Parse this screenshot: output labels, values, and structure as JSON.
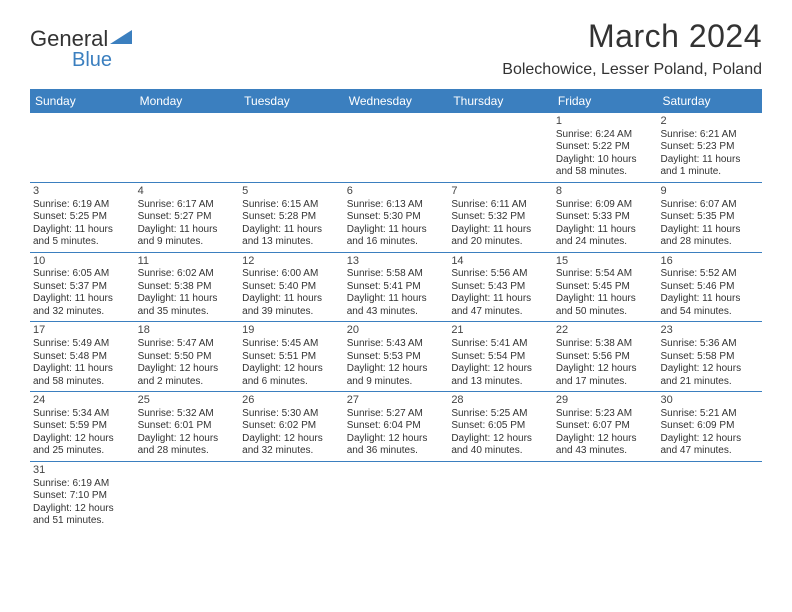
{
  "logo": {
    "text1": "General",
    "text2": "Blue"
  },
  "header": {
    "title": "March 2024",
    "location": "Bolechowice, Lesser Poland, Poland"
  },
  "colors": {
    "header_bg": "#3b7fbf",
    "header_text": "#ffffff",
    "border": "#3b7fbf",
    "text": "#333333",
    "logo_blue": "#3b7fbf"
  },
  "day_names": [
    "Sunday",
    "Monday",
    "Tuesday",
    "Wednesday",
    "Thursday",
    "Friday",
    "Saturday"
  ],
  "weeks": [
    [
      {
        "empty": true
      },
      {
        "empty": true
      },
      {
        "empty": true
      },
      {
        "empty": true
      },
      {
        "empty": true
      },
      {
        "num": "1",
        "sunrise": "Sunrise: 6:24 AM",
        "sunset": "Sunset: 5:22 PM",
        "daylight": "Daylight: 10 hours",
        "daylight2": "and 58 minutes."
      },
      {
        "num": "2",
        "sunrise": "Sunrise: 6:21 AM",
        "sunset": "Sunset: 5:23 PM",
        "daylight": "Daylight: 11 hours",
        "daylight2": "and 1 minute."
      }
    ],
    [
      {
        "num": "3",
        "sunrise": "Sunrise: 6:19 AM",
        "sunset": "Sunset: 5:25 PM",
        "daylight": "Daylight: 11 hours",
        "daylight2": "and 5 minutes."
      },
      {
        "num": "4",
        "sunrise": "Sunrise: 6:17 AM",
        "sunset": "Sunset: 5:27 PM",
        "daylight": "Daylight: 11 hours",
        "daylight2": "and 9 minutes."
      },
      {
        "num": "5",
        "sunrise": "Sunrise: 6:15 AM",
        "sunset": "Sunset: 5:28 PM",
        "daylight": "Daylight: 11 hours",
        "daylight2": "and 13 minutes."
      },
      {
        "num": "6",
        "sunrise": "Sunrise: 6:13 AM",
        "sunset": "Sunset: 5:30 PM",
        "daylight": "Daylight: 11 hours",
        "daylight2": "and 16 minutes."
      },
      {
        "num": "7",
        "sunrise": "Sunrise: 6:11 AM",
        "sunset": "Sunset: 5:32 PM",
        "daylight": "Daylight: 11 hours",
        "daylight2": "and 20 minutes."
      },
      {
        "num": "8",
        "sunrise": "Sunrise: 6:09 AM",
        "sunset": "Sunset: 5:33 PM",
        "daylight": "Daylight: 11 hours",
        "daylight2": "and 24 minutes."
      },
      {
        "num": "9",
        "sunrise": "Sunrise: 6:07 AM",
        "sunset": "Sunset: 5:35 PM",
        "daylight": "Daylight: 11 hours",
        "daylight2": "and 28 minutes."
      }
    ],
    [
      {
        "num": "10",
        "sunrise": "Sunrise: 6:05 AM",
        "sunset": "Sunset: 5:37 PM",
        "daylight": "Daylight: 11 hours",
        "daylight2": "and 32 minutes."
      },
      {
        "num": "11",
        "sunrise": "Sunrise: 6:02 AM",
        "sunset": "Sunset: 5:38 PM",
        "daylight": "Daylight: 11 hours",
        "daylight2": "and 35 minutes."
      },
      {
        "num": "12",
        "sunrise": "Sunrise: 6:00 AM",
        "sunset": "Sunset: 5:40 PM",
        "daylight": "Daylight: 11 hours",
        "daylight2": "and 39 minutes."
      },
      {
        "num": "13",
        "sunrise": "Sunrise: 5:58 AM",
        "sunset": "Sunset: 5:41 PM",
        "daylight": "Daylight: 11 hours",
        "daylight2": "and 43 minutes."
      },
      {
        "num": "14",
        "sunrise": "Sunrise: 5:56 AM",
        "sunset": "Sunset: 5:43 PM",
        "daylight": "Daylight: 11 hours",
        "daylight2": "and 47 minutes."
      },
      {
        "num": "15",
        "sunrise": "Sunrise: 5:54 AM",
        "sunset": "Sunset: 5:45 PM",
        "daylight": "Daylight: 11 hours",
        "daylight2": "and 50 minutes."
      },
      {
        "num": "16",
        "sunrise": "Sunrise: 5:52 AM",
        "sunset": "Sunset: 5:46 PM",
        "daylight": "Daylight: 11 hours",
        "daylight2": "and 54 minutes."
      }
    ],
    [
      {
        "num": "17",
        "sunrise": "Sunrise: 5:49 AM",
        "sunset": "Sunset: 5:48 PM",
        "daylight": "Daylight: 11 hours",
        "daylight2": "and 58 minutes."
      },
      {
        "num": "18",
        "sunrise": "Sunrise: 5:47 AM",
        "sunset": "Sunset: 5:50 PM",
        "daylight": "Daylight: 12 hours",
        "daylight2": "and 2 minutes."
      },
      {
        "num": "19",
        "sunrise": "Sunrise: 5:45 AM",
        "sunset": "Sunset: 5:51 PM",
        "daylight": "Daylight: 12 hours",
        "daylight2": "and 6 minutes."
      },
      {
        "num": "20",
        "sunrise": "Sunrise: 5:43 AM",
        "sunset": "Sunset: 5:53 PM",
        "daylight": "Daylight: 12 hours",
        "daylight2": "and 9 minutes."
      },
      {
        "num": "21",
        "sunrise": "Sunrise: 5:41 AM",
        "sunset": "Sunset: 5:54 PM",
        "daylight": "Daylight: 12 hours",
        "daylight2": "and 13 minutes."
      },
      {
        "num": "22",
        "sunrise": "Sunrise: 5:38 AM",
        "sunset": "Sunset: 5:56 PM",
        "daylight": "Daylight: 12 hours",
        "daylight2": "and 17 minutes."
      },
      {
        "num": "23",
        "sunrise": "Sunrise: 5:36 AM",
        "sunset": "Sunset: 5:58 PM",
        "daylight": "Daylight: 12 hours",
        "daylight2": "and 21 minutes."
      }
    ],
    [
      {
        "num": "24",
        "sunrise": "Sunrise: 5:34 AM",
        "sunset": "Sunset: 5:59 PM",
        "daylight": "Daylight: 12 hours",
        "daylight2": "and 25 minutes."
      },
      {
        "num": "25",
        "sunrise": "Sunrise: 5:32 AM",
        "sunset": "Sunset: 6:01 PM",
        "daylight": "Daylight: 12 hours",
        "daylight2": "and 28 minutes."
      },
      {
        "num": "26",
        "sunrise": "Sunrise: 5:30 AM",
        "sunset": "Sunset: 6:02 PM",
        "daylight": "Daylight: 12 hours",
        "daylight2": "and 32 minutes."
      },
      {
        "num": "27",
        "sunrise": "Sunrise: 5:27 AM",
        "sunset": "Sunset: 6:04 PM",
        "daylight": "Daylight: 12 hours",
        "daylight2": "and 36 minutes."
      },
      {
        "num": "28",
        "sunrise": "Sunrise: 5:25 AM",
        "sunset": "Sunset: 6:05 PM",
        "daylight": "Daylight: 12 hours",
        "daylight2": "and 40 minutes."
      },
      {
        "num": "29",
        "sunrise": "Sunrise: 5:23 AM",
        "sunset": "Sunset: 6:07 PM",
        "daylight": "Daylight: 12 hours",
        "daylight2": "and 43 minutes."
      },
      {
        "num": "30",
        "sunrise": "Sunrise: 5:21 AM",
        "sunset": "Sunset: 6:09 PM",
        "daylight": "Daylight: 12 hours",
        "daylight2": "and 47 minutes."
      }
    ],
    [
      {
        "num": "31",
        "sunrise": "Sunrise: 6:19 AM",
        "sunset": "Sunset: 7:10 PM",
        "daylight": "Daylight: 12 hours",
        "daylight2": "and 51 minutes."
      },
      {
        "empty": true
      },
      {
        "empty": true
      },
      {
        "empty": true
      },
      {
        "empty": true
      },
      {
        "empty": true
      },
      {
        "empty": true
      }
    ]
  ]
}
